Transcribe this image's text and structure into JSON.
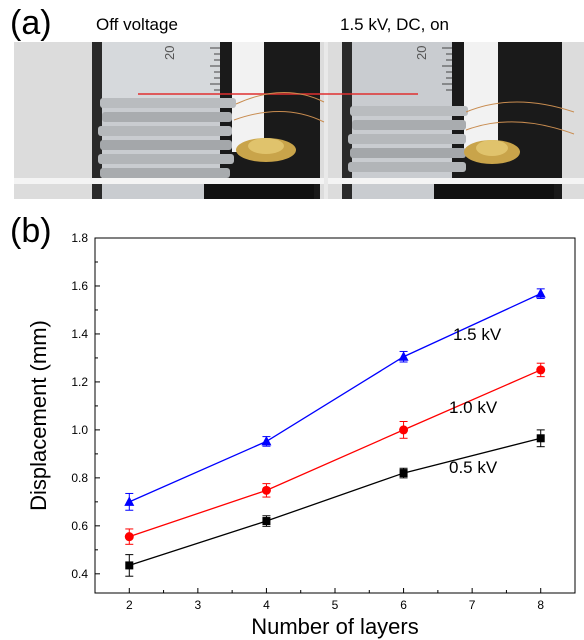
{
  "panel_a": {
    "label": "(a)",
    "left_caption": "Off voltage",
    "right_caption": "1.5 kV, DC, on",
    "ruler_marking": "20"
  },
  "panel_b": {
    "label": "(b)"
  },
  "chart_data": {
    "type": "line",
    "xlabel": "Number of layers",
    "ylabel": "Displacement (mm)",
    "xlim": [
      1.5,
      8.5
    ],
    "ylim": [
      0.32,
      1.8
    ],
    "x_ticks": [
      2,
      3,
      4,
      5,
      6,
      7,
      8
    ],
    "y_ticks": [
      0.4,
      0.6,
      0.8,
      1.0,
      1.2,
      1.4,
      1.6,
      1.8
    ],
    "x_tick_labels": [
      "2",
      "3",
      "4",
      "5",
      "6",
      "7",
      "8"
    ],
    "y_tick_labels": [
      "0.4",
      "0.6",
      "0.8",
      "1.0",
      "1.2",
      "1.4",
      "1.6",
      "1.8"
    ],
    "x": [
      2,
      4,
      6,
      8
    ],
    "grid": false,
    "legend": "inline-labels",
    "series": [
      {
        "name": "0.5 kV",
        "values": [
          0.435,
          0.62,
          0.82,
          0.965
        ],
        "error": [
          0.045,
          0.022,
          0.02,
          0.035
        ],
        "color": "#000000",
        "marker": "square"
      },
      {
        "name": "1.0 kV",
        "values": [
          0.555,
          0.748,
          1.0,
          1.25
        ],
        "error": [
          0.032,
          0.028,
          0.035,
          0.028
        ],
        "color": "#ff0000",
        "marker": "circle"
      },
      {
        "name": "1.5 kV",
        "values": [
          0.7,
          0.952,
          1.305,
          1.568
        ],
        "error": [
          0.035,
          0.02,
          0.022,
          0.02
        ],
        "color": "#0000ff",
        "marker": "triangle"
      }
    ]
  }
}
